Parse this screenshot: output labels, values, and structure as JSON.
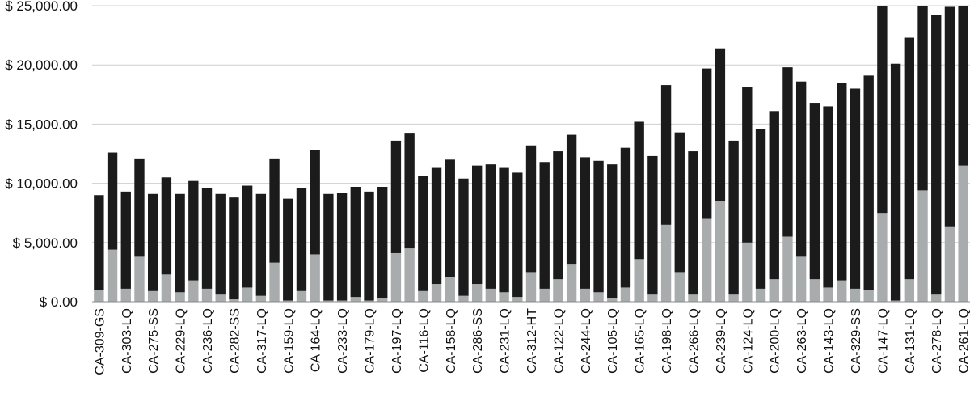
{
  "chart_data": {
    "type": "bar",
    "stacked": true,
    "ylim": [
      0,
      25000
    ],
    "grid": true,
    "yticks": [
      0,
      5000,
      10000,
      15000,
      20000,
      25000
    ],
    "ytick_labels": [
      "$ 0.00",
      "$ 5,000.00",
      "$ 10,000.00",
      "$ 15,000.00",
      "$ 20,000.00",
      "$ 25,000.00"
    ],
    "categories": [
      "CA-309-GS",
      "",
      "CA-303-LQ",
      "",
      "CA-275-SS",
      "",
      "CA-229-LQ",
      "",
      "CA-236-LQ",
      "",
      "CA-282-SS",
      "",
      "CA-317-LQ",
      "",
      "CA-159-LQ",
      "",
      "CA 164-LQ",
      "",
      "CA-233-LQ",
      "",
      "CA-179-LQ",
      "",
      "CA-197-LQ",
      "",
      "CA-116-LQ",
      "",
      "CA-158-LQ",
      "",
      "CA-286-SS",
      "",
      "CA-231-LQ",
      "",
      "CA-312-HT",
      "",
      "CA-122-LQ",
      "",
      "CA-244-LQ",
      "",
      "CA-105-LQ",
      "",
      "CA-165-LQ",
      "",
      "CA-198-LQ",
      "",
      "CA-266-LQ",
      "",
      "CA-239-LQ",
      "",
      "CA-124-LQ",
      "",
      "CA-200-LQ",
      "",
      "CA-263-LQ",
      "",
      "CA-143-LQ",
      "",
      "CA-329-SS",
      "",
      "CA-147-LQ",
      "",
      "CA-131-LQ",
      "",
      "CA-278-LQ",
      "",
      "CA-261-LQ"
    ],
    "series": [
      {
        "color": "#a9acac",
        "values": [
          1000,
          4400,
          1100,
          3800,
          900,
          2300,
          800,
          1800,
          1100,
          600,
          200,
          1200,
          500,
          3300,
          100,
          900,
          4000,
          100,
          100,
          400,
          100,
          300,
          4100,
          4500,
          900,
          1500,
          2100,
          500,
          1500,
          1100,
          800,
          400,
          2500,
          1100,
          1900,
          3200,
          1100,
          800,
          300,
          1200,
          3600,
          600,
          6500,
          2500,
          600,
          7000,
          8500,
          600,
          5000,
          1100,
          1900,
          5500,
          3800,
          1900,
          1200,
          1800,
          1100,
          1000,
          7500,
          100,
          1900,
          9400,
          600,
          6300,
          11500
        ]
      },
      {
        "color": "#1b1b1b",
        "values": [
          8000,
          8200,
          8200,
          8300,
          8200,
          8200,
          8300,
          8400,
          8500,
          8500,
          8600,
          8600,
          8600,
          8800,
          8600,
          8700,
          8800,
          9000,
          9100,
          9300,
          9200,
          9400,
          9500,
          9700,
          9700,
          9800,
          9900,
          9900,
          10000,
          10500,
          10500,
          10500,
          10700,
          10700,
          10800,
          10900,
          11100,
          11100,
          11300,
          11800,
          11600,
          11700,
          11800,
          11800,
          12100,
          12700,
          12900,
          13000,
          13100,
          13500,
          14200,
          14300,
          14800,
          14900,
          15300,
          16700,
          16900,
          18100,
          17500,
          20000,
          20400,
          15600,
          23600,
          18600,
          13500
        ]
      }
    ]
  }
}
